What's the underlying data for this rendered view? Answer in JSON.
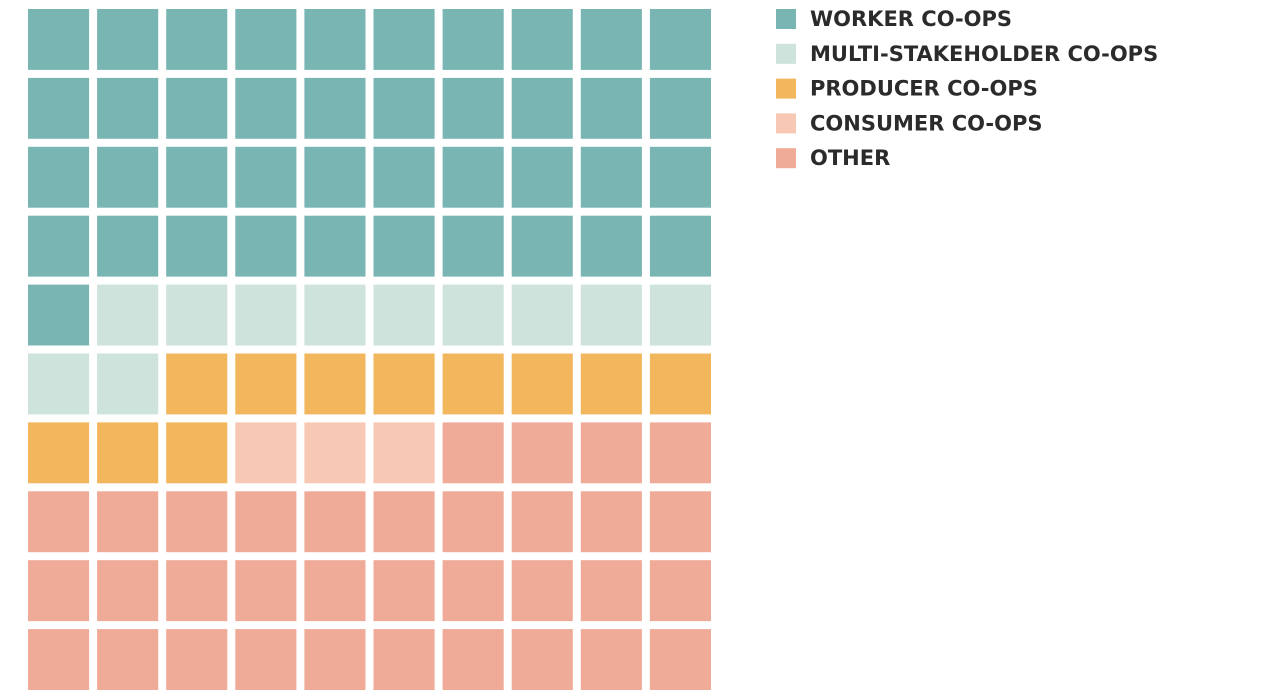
{
  "chart_data": {
    "type": "waffle",
    "rows": 10,
    "columns": 10,
    "categories": [
      "WORKER CO-OPS",
      "MULTI-STAKEHOLDER CO-OPS",
      "PRODUCER CO-OPS",
      "CONSUMER CO-OPS",
      "OTHER"
    ],
    "values": [
      41,
      11,
      11,
      3,
      34
    ],
    "colors": [
      "#79b5b3",
      "#cde3dc",
      "#f2b65d",
      "#f7c8b3",
      "#f0aa98"
    ]
  }
}
